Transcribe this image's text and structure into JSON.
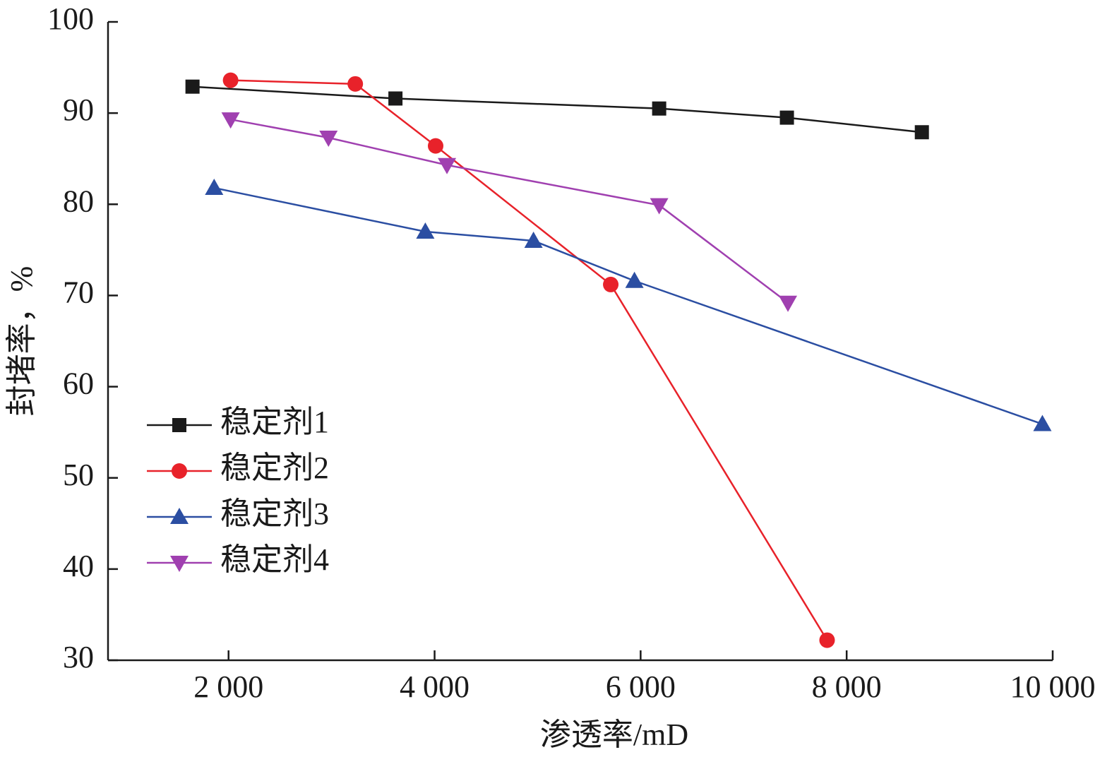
{
  "chart_data": {
    "type": "line",
    "x_label": "渗透率/mD",
    "y_label": "封堵率，%",
    "xlim": [
      830,
      10000
    ],
    "xticks": [
      {
        "value": 2000,
        "label": "2 000"
      },
      {
        "value": 4000,
        "label": "4 000"
      },
      {
        "value": 6000,
        "label": "6 000"
      },
      {
        "value": 8000,
        "label": "8 000"
      },
      {
        "value": 10000,
        "label": "10 000"
      }
    ],
    "ylim": [
      30,
      100
    ],
    "yticks": [
      30,
      40,
      50,
      60,
      70,
      80,
      90,
      100
    ],
    "legend": "left",
    "series": [
      {
        "name": "稳定剂1",
        "color": "#1a1a1a",
        "marker": "square",
        "x": [
          1650,
          3620,
          6180,
          7420,
          8730
        ],
        "values": [
          92.9,
          91.6,
          90.5,
          89.5,
          87.9
        ]
      },
      {
        "name": "稳定剂2",
        "color": "#e8222a",
        "marker": "circle",
        "x": [
          2020,
          3230,
          4010,
          5710,
          7810
        ],
        "values": [
          93.6,
          93.2,
          86.4,
          71.2,
          32.2
        ]
      },
      {
        "name": "稳定剂3",
        "color": "#2b4ea2",
        "marker": "triangle-up",
        "x": [
          1860,
          3910,
          4960,
          5940,
          9900
        ],
        "values": [
          81.8,
          77.0,
          76.0,
          71.6,
          55.9
        ]
      },
      {
        "name": "稳定剂4",
        "color": "#a040b0",
        "marker": "triangle-down",
        "x": [
          2020,
          2970,
          4120,
          6180,
          7430
        ],
        "values": [
          89.3,
          87.3,
          84.3,
          79.9,
          69.2
        ]
      }
    ]
  }
}
